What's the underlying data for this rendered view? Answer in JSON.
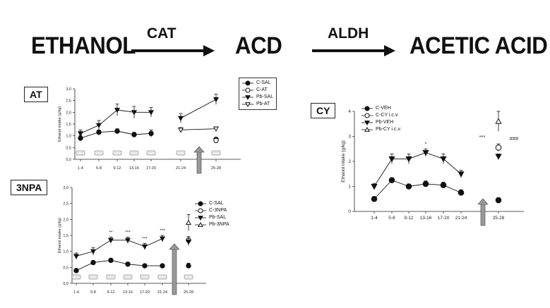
{
  "pathway": {
    "substrate": "ETHANOL",
    "enzyme1": "CAT",
    "intermediate": "ACD",
    "enzyme2": "ALDH",
    "product": "ACETIC ACID"
  },
  "chart_data": [
    {
      "id": "at",
      "type": "line",
      "panel_label": "AT",
      "ylabel": "Ethanol intake (g/kg)",
      "ylim": [
        0,
        3.0
      ],
      "yticks": [
        "0,0",
        "0,5",
        "1,0",
        "1,5",
        "2,0",
        "2,5",
        "3,0"
      ],
      "ytick_values": [
        0,
        0.5,
        1.0,
        1.5,
        2.0,
        2.5,
        3.0
      ],
      "categories": [
        "1-4",
        "5-8",
        "9-12",
        "13-16",
        "17-20",
        "21-24",
        "25-28"
      ],
      "legend_position": "top-right",
      "series": [
        {
          "name": "C-SAL",
          "marker": "circle-filled",
          "values": [
            0.9,
            1.15,
            1.2,
            1.05,
            1.1,
            null,
            0.85
          ],
          "err": [
            0.12,
            0.1,
            0.1,
            0.1,
            0.15,
            null,
            0.08
          ]
        },
        {
          "name": "C-AT",
          "marker": "circle-open",
          "values": [
            null,
            null,
            null,
            null,
            null,
            null,
            0.8
          ],
          "err": [
            null,
            null,
            null,
            null,
            null,
            null,
            0.08
          ]
        },
        {
          "name": "Pb-SAL",
          "marker": "triangle-down-filled",
          "values": [
            1.1,
            1.45,
            2.1,
            2.0,
            2.0,
            1.75,
            2.55
          ],
          "err": [
            0.15,
            0.2,
            0.25,
            0.25,
            0.2,
            0.2,
            0.22
          ]
        },
        {
          "name": "Pb-AT",
          "marker": "triangle-down-open",
          "values": [
            null,
            null,
            null,
            null,
            null,
            1.25,
            1.3
          ],
          "err": [
            null,
            null,
            null,
            null,
            null,
            0.1,
            0.08
          ]
        }
      ],
      "annotations": []
    },
    {
      "id": "npa",
      "type": "line",
      "panel_label": "3NPA",
      "ylabel": "Ethanol intake (g/kg)",
      "ylim": [
        0,
        3.0
      ],
      "yticks": [
        "0,0",
        "0,5",
        "1,0",
        "1,5",
        "2,0",
        "2,5",
        "3,0"
      ],
      "ytick_values": [
        0,
        0.5,
        1.0,
        1.5,
        2.0,
        2.5,
        3.0
      ],
      "categories": [
        "1-4",
        "5-8",
        "9-12",
        "13-16",
        "17-20",
        "21-24",
        "25-28"
      ],
      "legend_position": "right",
      "series": [
        {
          "name": "C-SAL",
          "marker": "circle-filled",
          "values": [
            0.4,
            0.65,
            0.72,
            0.6,
            0.55,
            0.55,
            0.55
          ],
          "err": [
            0.05,
            0.06,
            0.06,
            0.05,
            0.05,
            0.05,
            0.08
          ]
        },
        {
          "name": "C-3NPA",
          "marker": "circle-open",
          "values": [
            null,
            null,
            null,
            null,
            null,
            null,
            1.35
          ],
          "err": [
            null,
            null,
            null,
            null,
            null,
            null,
            0.12
          ]
        },
        {
          "name": "Pb-SAL",
          "marker": "triangle-down-filled",
          "values": [
            0.85,
            1.0,
            1.35,
            1.35,
            1.15,
            1.4,
            1.3
          ],
          "err": [
            0.1,
            0.12,
            0.1,
            0.1,
            0.1,
            0.1,
            0.12
          ]
        },
        {
          "name": "Pb-3NPA",
          "marker": "triangle-up-open",
          "values": [
            null,
            null,
            null,
            null,
            null,
            null,
            1.9
          ],
          "err": [
            null,
            null,
            null,
            null,
            null,
            null,
            0.25
          ]
        }
      ],
      "annotations": [
        {
          "category": "9-12",
          "text": "**"
        },
        {
          "category": "13-16",
          "text": "***"
        },
        {
          "category": "17-20",
          "text": "***"
        },
        {
          "category": "21-24",
          "text": "***"
        }
      ]
    },
    {
      "id": "cy",
      "type": "line",
      "panel_label": "CY",
      "ylabel": "Ethanol intake (g/kg)",
      "ylim": [
        0,
        4
      ],
      "yticks": [
        "0",
        "1",
        "2",
        "3",
        "4"
      ],
      "ytick_values": [
        0,
        1,
        2,
        3,
        4
      ],
      "categories": [
        "1-4",
        "5-8",
        "9-12",
        "13-16",
        "17-20",
        "21-24",
        "25-28"
      ],
      "legend_position": "top-left",
      "series": [
        {
          "name": "C-VEH",
          "marker": "circle-filled",
          "values": [
            0.5,
            1.25,
            1.0,
            1.1,
            1.05,
            0.75,
            0.45
          ],
          "err": [
            0.05,
            0.1,
            0.1,
            0.12,
            0.12,
            0.12,
            0.1
          ]
        },
        {
          "name": "C-CY i.c.v.",
          "marker": "circle-open",
          "values": [
            null,
            null,
            null,
            null,
            null,
            null,
            2.55
          ],
          "err": [
            null,
            null,
            null,
            null,
            null,
            null,
            0.15
          ]
        },
        {
          "name": "Pb-VEH",
          "marker": "triangle-down-filled",
          "values": [
            1.0,
            2.1,
            2.1,
            2.35,
            2.1,
            1.5,
            2.2
          ],
          "err": [
            0.12,
            0.2,
            0.2,
            0.15,
            0.2,
            0.15,
            0.1
          ]
        },
        {
          "name": "Pb-CY i.c.v.",
          "marker": "triangle-up-open",
          "values": [
            null,
            null,
            null,
            null,
            null,
            null,
            3.6
          ],
          "err": [
            null,
            null,
            null,
            null,
            null,
            null,
            0.4
          ]
        }
      ],
      "annotations": [
        {
          "category": "13-16",
          "text": "*"
        },
        {
          "category": "after-21-24",
          "text": "***"
        },
        {
          "category": "after-25-28",
          "text": "###"
        }
      ]
    }
  ]
}
